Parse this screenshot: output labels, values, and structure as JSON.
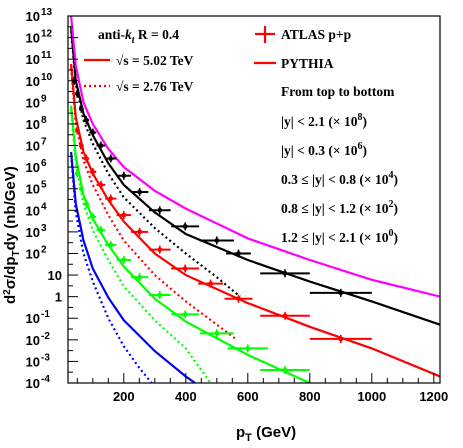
{
  "chart_data": {
    "type": "scatter",
    "title": "",
    "xlabel": "p_T (GeV)",
    "xlabel_main": "p",
    "xlabel_sub": "T",
    "xlabel_unit": " (GeV)",
    "ylabel": "d²σ/dp_T dy (nb/GeV)",
    "ylabel_parts": [
      "d",
      "2",
      "σ/dp",
      "T",
      "dy (nb/GeV)"
    ],
    "xlim": [
      20,
      1220
    ],
    "ylim": [
      0.0001,
      10000000000000
    ],
    "yscale": "log",
    "x_ticks": [
      200,
      400,
      600,
      800,
      1000,
      1200
    ],
    "x_tick_labels": [
      "200",
      "400",
      "600",
      "800",
      "1000",
      "1200"
    ],
    "y_ticks": [
      0.0001,
      0.001,
      0.01,
      0.1,
      1,
      10,
      100,
      1000,
      10000,
      100000,
      1000000,
      10000000,
      100000000,
      1000000000,
      10000000000,
      100000000000,
      1000000000000,
      10000000000000
    ],
    "y_tick_labels": [
      {
        "base": "10",
        "exp": "-4"
      },
      {
        "base": "10",
        "exp": "-3"
      },
      {
        "base": "10",
        "exp": "-2"
      },
      {
        "base": "10",
        "exp": "-1"
      },
      {
        "base": "1",
        "exp": ""
      },
      {
        "base": "10",
        "exp": ""
      },
      {
        "base": "10",
        "exp": "2"
      },
      {
        "base": "10",
        "exp": "3"
      },
      {
        "base": "10",
        "exp": "4"
      },
      {
        "base": "10",
        "exp": "5"
      },
      {
        "base": "10",
        "exp": "6"
      },
      {
        "base": "10",
        "exp": "7"
      },
      {
        "base": "10",
        "exp": "8"
      },
      {
        "base": "10",
        "exp": "9"
      },
      {
        "base": "10",
        "exp": "10"
      },
      {
        "base": "10",
        "exp": "11"
      },
      {
        "base": "10",
        "exp": "12"
      },
      {
        "base": "10",
        "exp": "13"
      }
    ],
    "grid": false,
    "legend_position": "top",
    "legend": {
      "algo": {
        "pre": "anti-",
        "k": "k",
        "sub": "t",
        "post": " R = 0.4"
      },
      "line1": {
        "text": "√s = 5.02 TeV",
        "color": "#ff0000",
        "style": "solid"
      },
      "line2": {
        "text": "√s = 2.76 TeV",
        "color": "#ff0000",
        "style": "dotted"
      },
      "atlas": {
        "text": "ATLAS p+p",
        "color": "#ff0000"
      },
      "pythia": {
        "text": "PYTHIA",
        "color": "#ff0000"
      },
      "order_title": "From top to bottom",
      "rapidity_bins": [
        {
          "range": "|y| < 2.1",
          "scale": "(× 10",
          "exp": "8",
          "close": ")"
        },
        {
          "range": "|y| < 0.3",
          "scale": "(× 10",
          "exp": "6",
          "close": ")"
        },
        {
          "range": "0.3  ≤ |y| < 0.8",
          "scale": "(× 10",
          "exp": "4",
          "close": ")"
        },
        {
          "range": "0.8  ≤ |y| < 1.2",
          "scale": "(× 10",
          "exp": "2",
          "close": ")"
        },
        {
          "range": "1.2  ≤ |y| < 2.1",
          "scale": "(× 10",
          "exp": "0",
          "close": ")"
        }
      ]
    },
    "series": [
      {
        "name": "|y| < 2.1 (× 10⁸)",
        "color": "#000000",
        "data_5tev": [
          {
            "x": 40,
            "xerr": 5,
            "y": 10000000000
          },
          {
            "x": 50,
            "xerr": 5,
            "y": 2500000000
          },
          {
            "x": 63,
            "xerr": 7,
            "y": 500000000
          },
          {
            "x": 79,
            "xerr": 9,
            "y": 150000000
          },
          {
            "x": 100,
            "xerr": 11,
            "y": 40000000
          },
          {
            "x": 126,
            "xerr": 14,
            "y": 10000000
          },
          {
            "x": 158,
            "xerr": 18,
            "y": 2500000
          },
          {
            "x": 200,
            "xerr": 23,
            "y": 400000
          },
          {
            "x": 251,
            "xerr": 28,
            "y": 70000
          },
          {
            "x": 316,
            "xerr": 35,
            "y": 10000
          },
          {
            "x": 398,
            "xerr": 45,
            "y": 1800
          },
          {
            "x": 500,
            "xerr": 55,
            "y": 400
          },
          {
            "x": 570,
            "xerr": 40,
            "y": 100
          },
          {
            "x": 720,
            "xerr": 80,
            "y": 12
          },
          {
            "x": 900,
            "xerr": 100,
            "y": 1.5
          }
        ],
        "pythia_5tev": [
          [
            30,
            3000000000000
          ],
          [
            45,
            10000000000
          ],
          [
            70,
            300000000
          ],
          [
            100,
            30000000
          ],
          [
            150,
            1500000
          ],
          [
            200,
            150000
          ],
          [
            300,
            8000
          ],
          [
            400,
            800
          ],
          [
            600,
            50
          ],
          [
            800,
            5
          ],
          [
            1000,
            0.6
          ],
          [
            1220,
            0.05
          ]
        ],
        "pythia_2tev": [
          [
            30,
            2000000000000
          ],
          [
            45,
            7000000000
          ],
          [
            70,
            150000000
          ],
          [
            100,
            12000000
          ],
          [
            150,
            500000
          ],
          [
            200,
            40000
          ],
          [
            300,
            1500
          ],
          [
            400,
            100
          ],
          [
            500,
            8
          ],
          [
            575,
            1
          ]
        ]
      },
      {
        "name": "|y| < 0.3 (× 10⁶)",
        "color": "#ff0000",
        "data_5tev": [
          {
            "x": 50,
            "xerr": 5,
            "y": 50000000
          },
          {
            "x": 63,
            "xerr": 7,
            "y": 10000000
          },
          {
            "x": 79,
            "xerr": 9,
            "y": 2500000
          },
          {
            "x": 100,
            "xerr": 11,
            "y": 600000
          },
          {
            "x": 126,
            "xerr": 14,
            "y": 150000
          },
          {
            "x": 158,
            "xerr": 18,
            "y": 35000
          },
          {
            "x": 200,
            "xerr": 23,
            "y": 6000
          },
          {
            "x": 251,
            "xerr": 28,
            "y": 1000
          },
          {
            "x": 316,
            "xerr": 35,
            "y": 150
          },
          {
            "x": 398,
            "xerr": 45,
            "y": 20
          },
          {
            "x": 480,
            "xerr": 40,
            "y": 4
          },
          {
            "x": 570,
            "xerr": 45,
            "y": 0.8
          },
          {
            "x": 720,
            "xerr": 80,
            "y": 0.13
          },
          {
            "x": 900,
            "xerr": 100,
            "y": 0.011
          }
        ],
        "pythia_5tev": [
          [
            30,
            60000000000
          ],
          [
            45,
            200000000
          ],
          [
            70,
            5000000
          ],
          [
            100,
            500000
          ],
          [
            150,
            30000
          ],
          [
            200,
            3000
          ],
          [
            300,
            100
          ],
          [
            400,
            10
          ],
          [
            600,
            0.5
          ],
          [
            800,
            0.04
          ],
          [
            1000,
            0.004
          ],
          [
            1220,
            0.0002
          ]
        ],
        "pythia_2tev": [
          [
            30,
            40000000000
          ],
          [
            45,
            100000000
          ],
          [
            70,
            2000000
          ],
          [
            100,
            150000
          ],
          [
            150,
            6000
          ],
          [
            200,
            400
          ],
          [
            300,
            10
          ],
          [
            400,
            0.6
          ],
          [
            500,
            0.05
          ],
          [
            565,
            0.01
          ]
        ]
      },
      {
        "name": "0.3 ≤ |y| < 0.8 (× 10⁴)",
        "color": "#00ff00",
        "data_5tev": [
          {
            "x": 50,
            "xerr": 5,
            "y": 500000
          },
          {
            "x": 63,
            "xerr": 7,
            "y": 100000
          },
          {
            "x": 79,
            "xerr": 9,
            "y": 20000
          },
          {
            "x": 100,
            "xerr": 11,
            "y": 5000
          },
          {
            "x": 126,
            "xerr": 14,
            "y": 1200
          },
          {
            "x": 158,
            "xerr": 18,
            "y": 250
          },
          {
            "x": 200,
            "xerr": 23,
            "y": 50
          },
          {
            "x": 251,
            "xerr": 28,
            "y": 8
          },
          {
            "x": 316,
            "xerr": 35,
            "y": 1.2
          },
          {
            "x": 398,
            "xerr": 45,
            "y": 0.15
          },
          {
            "x": 500,
            "xerr": 55,
            "y": 0.02
          },
          {
            "x": 600,
            "xerr": 65,
            "y": 0.004
          },
          {
            "x": 720,
            "xerr": 80,
            "y": 0.0004
          }
        ],
        "pythia_5tev": [
          [
            30,
            700000000
          ],
          [
            45,
            3000000
          ],
          [
            70,
            50000
          ],
          [
            100,
            4000
          ],
          [
            150,
            250
          ],
          [
            200,
            25
          ],
          [
            300,
            0.8
          ],
          [
            400,
            0.07
          ],
          [
            600,
            0.002
          ],
          [
            800,
            0.0001
          ]
        ],
        "pythia_2tev": [
          [
            30,
            500000000
          ],
          [
            45,
            1500000
          ],
          [
            70,
            20000
          ],
          [
            100,
            1200
          ],
          [
            150,
            50
          ],
          [
            200,
            3
          ],
          [
            300,
            0.08
          ],
          [
            400,
            0.004
          ],
          [
            480,
            0.0001
          ]
        ]
      },
      {
        "name": "0.8 ≤ |y| < 1.2 (× 10²)",
        "color": "#0000ff",
        "data_5tev": [],
        "pythia_5tev": [
          [
            30,
            5000000
          ],
          [
            45,
            20000
          ],
          [
            70,
            400
          ],
          [
            100,
            20
          ],
          [
            150,
            0.9
          ],
          [
            200,
            0.08
          ],
          [
            300,
            0.003
          ],
          [
            400,
            0.0002
          ],
          [
            430,
            0.0001
          ]
        ],
        "pythia_2tev": [
          [
            30,
            3500000
          ],
          [
            45,
            8000
          ],
          [
            70,
            100
          ],
          [
            100,
            5
          ],
          [
            150,
            0.1
          ],
          [
            200,
            0.005
          ],
          [
            250,
            0.0005
          ],
          [
            290,
            0.0001
          ]
        ]
      },
      {
        "name": "1.2 ≤ |y| < 2.1 (× 10⁰)",
        "color": "#ff00ff",
        "data_5tev": [],
        "pythia_5tev": [
          [
            30,
            10000000000000
          ],
          [
            45,
            50000000000
          ],
          [
            70,
            1000000000
          ],
          [
            100,
            100000000
          ],
          [
            150,
            7000000
          ],
          [
            200,
            1000000
          ],
          [
            300,
            80000
          ],
          [
            400,
            12000
          ],
          [
            600,
            500
          ],
          [
            800,
            50
          ],
          [
            1000,
            6
          ],
          [
            1220,
            1
          ]
        ],
        "pythia_2tev": []
      }
    ]
  }
}
